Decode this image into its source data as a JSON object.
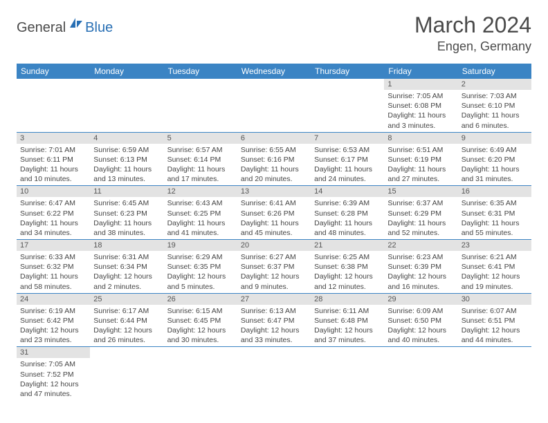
{
  "logo": {
    "text1": "General",
    "text2": "Blue"
  },
  "title": "March 2024",
  "location": "Engen, Germany",
  "colors": {
    "header_bg": "#3b84c4",
    "header_text": "#ffffff",
    "daynum_bg": "#e3e3e3",
    "row_border": "#3b84c4",
    "logo_blue": "#286fb4"
  },
  "weekdays": [
    "Sunday",
    "Monday",
    "Tuesday",
    "Wednesday",
    "Thursday",
    "Friday",
    "Saturday"
  ],
  "weeks": [
    [
      null,
      null,
      null,
      null,
      null,
      {
        "n": "1",
        "sr": "Sunrise: 7:05 AM",
        "ss": "Sunset: 6:08 PM",
        "dl": "Daylight: 11 hours and 3 minutes."
      },
      {
        "n": "2",
        "sr": "Sunrise: 7:03 AM",
        "ss": "Sunset: 6:10 PM",
        "dl": "Daylight: 11 hours and 6 minutes."
      }
    ],
    [
      {
        "n": "3",
        "sr": "Sunrise: 7:01 AM",
        "ss": "Sunset: 6:11 PM",
        "dl": "Daylight: 11 hours and 10 minutes."
      },
      {
        "n": "4",
        "sr": "Sunrise: 6:59 AM",
        "ss": "Sunset: 6:13 PM",
        "dl": "Daylight: 11 hours and 13 minutes."
      },
      {
        "n": "5",
        "sr": "Sunrise: 6:57 AM",
        "ss": "Sunset: 6:14 PM",
        "dl": "Daylight: 11 hours and 17 minutes."
      },
      {
        "n": "6",
        "sr": "Sunrise: 6:55 AM",
        "ss": "Sunset: 6:16 PM",
        "dl": "Daylight: 11 hours and 20 minutes."
      },
      {
        "n": "7",
        "sr": "Sunrise: 6:53 AM",
        "ss": "Sunset: 6:17 PM",
        "dl": "Daylight: 11 hours and 24 minutes."
      },
      {
        "n": "8",
        "sr": "Sunrise: 6:51 AM",
        "ss": "Sunset: 6:19 PM",
        "dl": "Daylight: 11 hours and 27 minutes."
      },
      {
        "n": "9",
        "sr": "Sunrise: 6:49 AM",
        "ss": "Sunset: 6:20 PM",
        "dl": "Daylight: 11 hours and 31 minutes."
      }
    ],
    [
      {
        "n": "10",
        "sr": "Sunrise: 6:47 AM",
        "ss": "Sunset: 6:22 PM",
        "dl": "Daylight: 11 hours and 34 minutes."
      },
      {
        "n": "11",
        "sr": "Sunrise: 6:45 AM",
        "ss": "Sunset: 6:23 PM",
        "dl": "Daylight: 11 hours and 38 minutes."
      },
      {
        "n": "12",
        "sr": "Sunrise: 6:43 AM",
        "ss": "Sunset: 6:25 PM",
        "dl": "Daylight: 11 hours and 41 minutes."
      },
      {
        "n": "13",
        "sr": "Sunrise: 6:41 AM",
        "ss": "Sunset: 6:26 PM",
        "dl": "Daylight: 11 hours and 45 minutes."
      },
      {
        "n": "14",
        "sr": "Sunrise: 6:39 AM",
        "ss": "Sunset: 6:28 PM",
        "dl": "Daylight: 11 hours and 48 minutes."
      },
      {
        "n": "15",
        "sr": "Sunrise: 6:37 AM",
        "ss": "Sunset: 6:29 PM",
        "dl": "Daylight: 11 hours and 52 minutes."
      },
      {
        "n": "16",
        "sr": "Sunrise: 6:35 AM",
        "ss": "Sunset: 6:31 PM",
        "dl": "Daylight: 11 hours and 55 minutes."
      }
    ],
    [
      {
        "n": "17",
        "sr": "Sunrise: 6:33 AM",
        "ss": "Sunset: 6:32 PM",
        "dl": "Daylight: 11 hours and 58 minutes."
      },
      {
        "n": "18",
        "sr": "Sunrise: 6:31 AM",
        "ss": "Sunset: 6:34 PM",
        "dl": "Daylight: 12 hours and 2 minutes."
      },
      {
        "n": "19",
        "sr": "Sunrise: 6:29 AM",
        "ss": "Sunset: 6:35 PM",
        "dl": "Daylight: 12 hours and 5 minutes."
      },
      {
        "n": "20",
        "sr": "Sunrise: 6:27 AM",
        "ss": "Sunset: 6:37 PM",
        "dl": "Daylight: 12 hours and 9 minutes."
      },
      {
        "n": "21",
        "sr": "Sunrise: 6:25 AM",
        "ss": "Sunset: 6:38 PM",
        "dl": "Daylight: 12 hours and 12 minutes."
      },
      {
        "n": "22",
        "sr": "Sunrise: 6:23 AM",
        "ss": "Sunset: 6:39 PM",
        "dl": "Daylight: 12 hours and 16 minutes."
      },
      {
        "n": "23",
        "sr": "Sunrise: 6:21 AM",
        "ss": "Sunset: 6:41 PM",
        "dl": "Daylight: 12 hours and 19 minutes."
      }
    ],
    [
      {
        "n": "24",
        "sr": "Sunrise: 6:19 AM",
        "ss": "Sunset: 6:42 PM",
        "dl": "Daylight: 12 hours and 23 minutes."
      },
      {
        "n": "25",
        "sr": "Sunrise: 6:17 AM",
        "ss": "Sunset: 6:44 PM",
        "dl": "Daylight: 12 hours and 26 minutes."
      },
      {
        "n": "26",
        "sr": "Sunrise: 6:15 AM",
        "ss": "Sunset: 6:45 PM",
        "dl": "Daylight: 12 hours and 30 minutes."
      },
      {
        "n": "27",
        "sr": "Sunrise: 6:13 AM",
        "ss": "Sunset: 6:47 PM",
        "dl": "Daylight: 12 hours and 33 minutes."
      },
      {
        "n": "28",
        "sr": "Sunrise: 6:11 AM",
        "ss": "Sunset: 6:48 PM",
        "dl": "Daylight: 12 hours and 37 minutes."
      },
      {
        "n": "29",
        "sr": "Sunrise: 6:09 AM",
        "ss": "Sunset: 6:50 PM",
        "dl": "Daylight: 12 hours and 40 minutes."
      },
      {
        "n": "30",
        "sr": "Sunrise: 6:07 AM",
        "ss": "Sunset: 6:51 PM",
        "dl": "Daylight: 12 hours and 44 minutes."
      }
    ],
    [
      {
        "n": "31",
        "sr": "Sunrise: 7:05 AM",
        "ss": "Sunset: 7:52 PM",
        "dl": "Daylight: 12 hours and 47 minutes."
      },
      null,
      null,
      null,
      null,
      null,
      null
    ]
  ]
}
